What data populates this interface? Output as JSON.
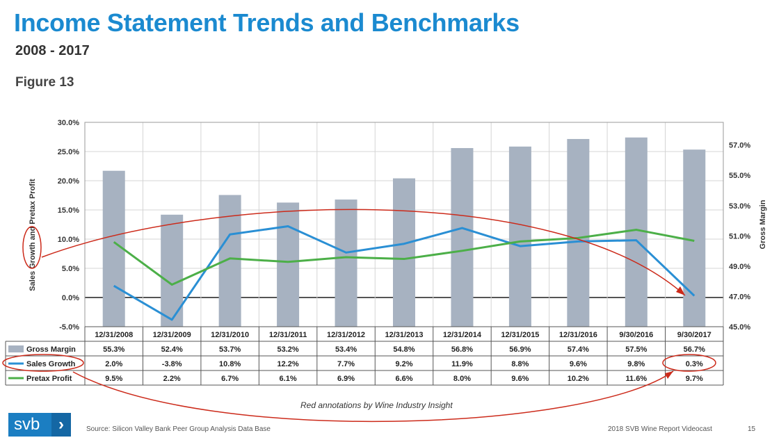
{
  "header": {
    "title": "Income Statement Trends and Benchmarks",
    "subtitle": "2008 - 2017",
    "figure_label": "Figure 13"
  },
  "footer": {
    "logo_text": "svb",
    "logo_chevron": "›",
    "source": "Source: Silicon Valley Bank Peer Group Analysis Data Base",
    "report": "2018 SVB Wine Report Videocast",
    "page": "15",
    "annotation_note": "Red annotations by Wine Industry Insight"
  },
  "colors": {
    "title": "#1b8ad0",
    "gross_margin": "#a7b2c1",
    "sales_growth": "#2a8fd4",
    "pretax_profit": "#4caf48",
    "annotation": "#cc2a1a"
  },
  "chart_data": {
    "type": "bar",
    "categories": [
      "12/31/2008",
      "12/31/2009",
      "12/31/2010",
      "12/31/2011",
      "12/31/2012",
      "12/31/2013",
      "12/31/2014",
      "12/31/2015",
      "12/31/2016",
      "9/30/2016",
      "9/30/2017"
    ],
    "series": [
      {
        "name": "Gross Margin",
        "type": "bar",
        "axis": "right",
        "values": [
          55.3,
          52.4,
          53.7,
          53.2,
          53.4,
          54.8,
          56.8,
          56.9,
          57.4,
          57.5,
          56.7
        ],
        "labels": [
          "55.3%",
          "52.4%",
          "53.7%",
          "53.2%",
          "53.4%",
          "54.8%",
          "56.8%",
          "56.9%",
          "57.4%",
          "57.5%",
          "56.7%"
        ]
      },
      {
        "name": "Sales Growth",
        "type": "line",
        "axis": "left",
        "values": [
          2.0,
          -3.8,
          10.8,
          12.2,
          7.7,
          9.2,
          11.9,
          8.8,
          9.6,
          9.8,
          0.3
        ],
        "labels": [
          "2.0%",
          "-3.8%",
          "10.8%",
          "12.2%",
          "7.7%",
          "9.2%",
          "11.9%",
          "8.8%",
          "9.6%",
          "9.8%",
          "0.3%"
        ]
      },
      {
        "name": "Pretax Profit",
        "type": "line",
        "axis": "left",
        "values": [
          9.5,
          2.2,
          6.7,
          6.1,
          6.9,
          6.6,
          8.0,
          9.6,
          10.2,
          11.6,
          9.7
        ],
        "labels": [
          "9.5%",
          "2.2%",
          "6.7%",
          "6.1%",
          "6.9%",
          "6.6%",
          "8.0%",
          "9.6%",
          "10.2%",
          "11.6%",
          "9.7%"
        ]
      }
    ],
    "ylabel": "Sales Growth and Pretax Profit",
    "y2label": "Gross Margin",
    "ylim": [
      -5,
      30
    ],
    "y2lim": [
      45,
      58.5
    ],
    "yticks": [
      "30.0%",
      "25.0%",
      "20.0%",
      "15.0%",
      "10.0%",
      "5.0%",
      "0.0%",
      "-5.0%"
    ],
    "y2ticks": [
      "57.0%",
      "55.0%",
      "53.0%",
      "51.0%",
      "49.0%",
      "47.0%",
      "45.0%"
    ],
    "grid": true,
    "legend": "data table below chart"
  }
}
